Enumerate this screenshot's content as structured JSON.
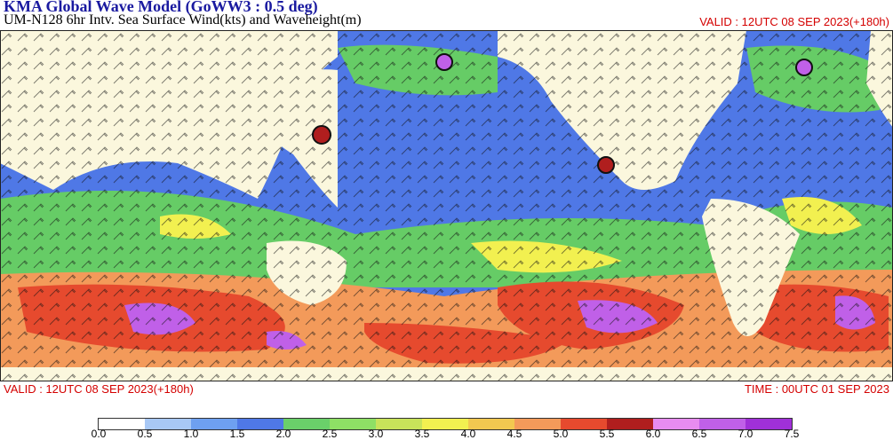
{
  "header": {
    "title": "KMA  Global Wave Model (GoWW3 : 0.5 deg)",
    "subtitle": "UM-N128  6hr Intv. Sea Surface Wind(kts) and Waveheight(m)",
    "valid_top": "VALID : 12UTC 08 SEP 2023(+180h)"
  },
  "footer": {
    "valid": "VALID : 12UTC 08 SEP 2023(+180h)",
    "time": "TIME : 00UTC 01 SEP 2023"
  },
  "colors": {
    "land": "#fbf7dd",
    "ocean_low": "#4f78e6",
    "ocean_mid": "#66cc66",
    "ocean_high": "#e62c1e"
  },
  "legend": {
    "labels": [
      "0.0",
      "0.5",
      "1.0",
      "1.5",
      "2.0",
      "2.5",
      "3.0",
      "3.5",
      "4.0",
      "4.5",
      "5.0",
      "5.5",
      "6.0",
      "6.5",
      "7.0",
      "7.5"
    ],
    "colors": [
      "#ffffff",
      "#a8c8f5",
      "#6ea0f0",
      "#4f78e6",
      "#6ad06a",
      "#8ee065",
      "#c8e35a",
      "#f2f050",
      "#f2c850",
      "#f39a5a",
      "#e64a2e",
      "#b01e1e",
      "#e88cf0",
      "#c060e8",
      "#a030d8"
    ]
  }
}
